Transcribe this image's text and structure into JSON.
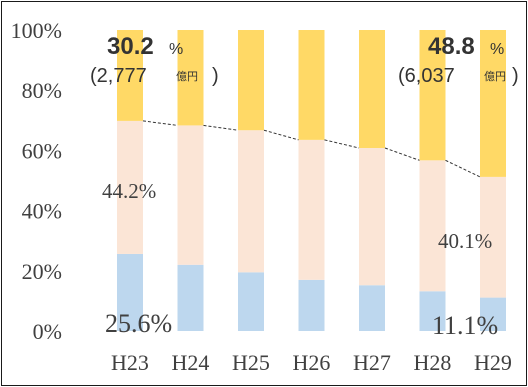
{
  "chart_data": {
    "type": "bar",
    "stacked": true,
    "percent": true,
    "categories": [
      "H23",
      "H24",
      "H25",
      "H26",
      "H27",
      "H28",
      "H29"
    ],
    "series": [
      {
        "values": [
          25.6,
          22.0,
          19.5,
          17.0,
          15.2,
          13.2,
          11.1
        ],
        "color": "#bdd7ee"
      },
      {
        "values": [
          44.2,
          46.3,
          47.2,
          46.5,
          45.6,
          43.5,
          40.1
        ],
        "color": "#fbe5d6"
      },
      {
        "values": [
          30.2,
          31.7,
          33.3,
          36.5,
          39.2,
          43.3,
          48.8
        ],
        "color": "#ffd966"
      }
    ],
    "trend_line": {
      "style": "dashed",
      "y": [
        69.8,
        68.3,
        66.7,
        63.5,
        60.8,
        56.7,
        51.2
      ]
    },
    "ylim": [
      0,
      100
    ],
    "yticks": [
      0,
      20,
      40,
      60,
      80,
      100
    ],
    "ytick_labels": [
      "0%",
      "20%",
      "40%",
      "60%",
      "80%",
      "100%"
    ],
    "title": "",
    "xlabel": "",
    "ylabel": "",
    "grid": false,
    "annotations": {
      "first_top": {
        "value": "30.2",
        "pct": "%",
        "amount": "(2,777",
        "unit": "億円",
        "close": ")"
      },
      "first_middle": "44.2%",
      "first_bottom": "25.6%",
      "last_top": {
        "value": "48.8",
        "pct": "%",
        "amount": "(6,037",
        "unit": "億円",
        "close": ")"
      },
      "last_middle": "40.1%",
      "last_bottom": "11.1%"
    }
  }
}
